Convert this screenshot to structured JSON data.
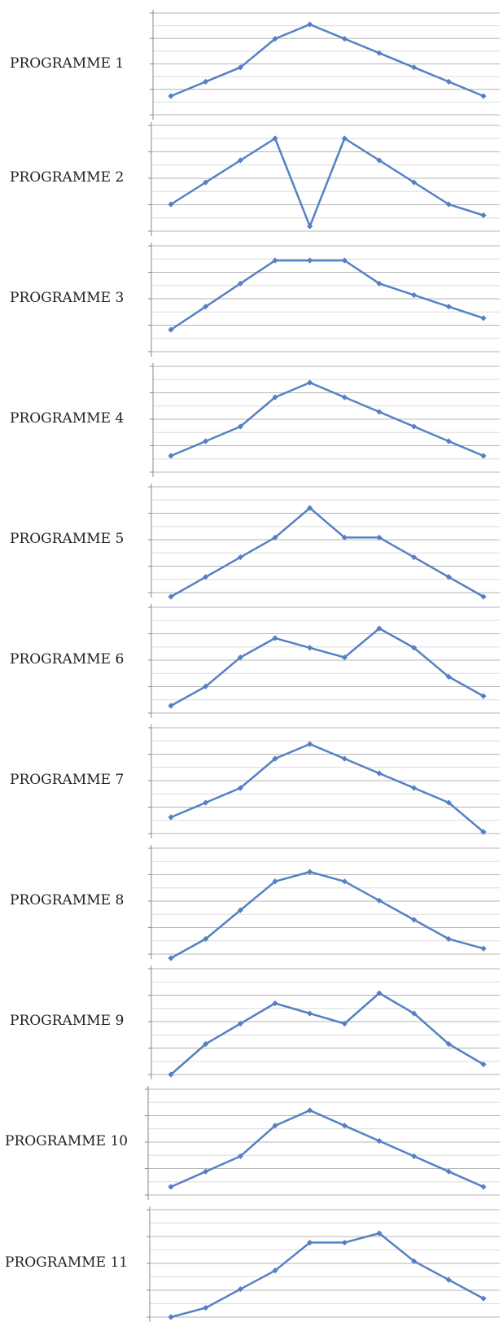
{
  "colors": {
    "line": "#5581c4",
    "grid": "#c8c8c8",
    "axis": "#8a8a8a",
    "text": "#222222"
  },
  "chart_data": [
    {
      "type": "line",
      "label": "PROGRAMME 1",
      "grid": true,
      "ylim": [
        0,
        7
      ],
      "values": [
        1,
        2,
        3,
        5,
        6,
        5,
        4,
        3,
        2,
        1
      ]
    },
    {
      "type": "line",
      "label": "PROGRAMME 2",
      "grid": true,
      "ylim": [
        0,
        9
      ],
      "values": [
        1,
        3,
        5,
        7,
        -1,
        7,
        5,
        3,
        1,
        0
      ]
    },
    {
      "type": "line",
      "label": "PROGRAMME 3",
      "grid": true,
      "ylim": [
        0,
        8
      ],
      "values": [
        1,
        3,
        5,
        7,
        7,
        7,
        5,
        4,
        3,
        2
      ]
    },
    {
      "type": "line",
      "label": "PROGRAMME 4",
      "grid": true,
      "ylim": [
        0,
        7
      ],
      "values": [
        1,
        2,
        3,
        5,
        6,
        5,
        4,
        3,
        2,
        1
      ]
    },
    {
      "type": "line",
      "label": "PROGRAMME 5",
      "grid": true,
      "ylim": [
        0,
        5
      ],
      "values": [
        0,
        1,
        2,
        3,
        4.5,
        3,
        3,
        2,
        1,
        0
      ]
    },
    {
      "type": "line",
      "label": "PROGRAMME 6",
      "grid": true,
      "ylim": [
        0,
        5
      ],
      "values": [
        0,
        1,
        2.5,
        3.5,
        3,
        2.5,
        4,
        3,
        1.5,
        0.5
      ]
    },
    {
      "type": "line",
      "label": "PROGRAMME 7",
      "grid": true,
      "ylim": [
        0,
        7
      ],
      "values": [
        1,
        2,
        3,
        5,
        6,
        5,
        4,
        3,
        2,
        0
      ]
    },
    {
      "type": "line",
      "label": "PROGRAMME 8",
      "grid": true,
      "ylim": [
        0,
        5
      ],
      "values": [
        0,
        1,
        2.5,
        4,
        4.5,
        4,
        3,
        2,
        1,
        0.5
      ]
    },
    {
      "type": "line",
      "label": "PROGRAMME 9",
      "grid": true,
      "ylim": [
        0,
        5
      ],
      "values": [
        0,
        1.5,
        2.5,
        3.5,
        3,
        2.5,
        4,
        3,
        1.5,
        0.5
      ]
    },
    {
      "type": "line",
      "label": "PROGRAMME 10",
      "grid": true,
      "ylim": [
        0,
        7
      ],
      "values": [
        1,
        2,
        3,
        5,
        6,
        5,
        4,
        3,
        2,
        1
      ]
    },
    {
      "type": "line",
      "label": "PROGRAMME 11",
      "grid": true,
      "ylim": [
        0,
        5
      ],
      "values": [
        0,
        0.5,
        1.5,
        2.5,
        4,
        4,
        4.5,
        3,
        2,
        1
      ]
    }
  ]
}
